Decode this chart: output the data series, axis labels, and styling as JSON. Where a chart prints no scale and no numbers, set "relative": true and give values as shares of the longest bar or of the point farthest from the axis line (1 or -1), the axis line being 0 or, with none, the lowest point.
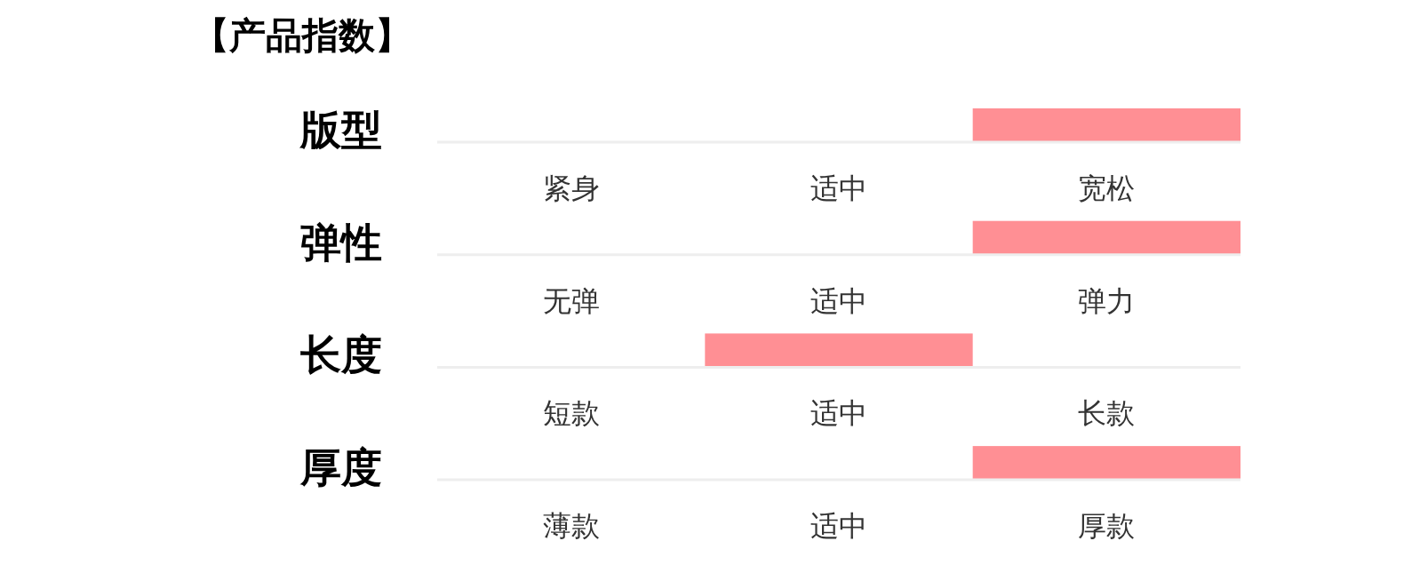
{
  "chart_data": [
    {
      "type": "bar",
      "title": "【产品指数】",
      "ylabel": "版型",
      "categories": [
        "紧身",
        "适中",
        "宽松"
      ],
      "values": [
        0,
        0,
        1
      ],
      "relative": true,
      "color": "#ff8f94"
    },
    {
      "type": "bar",
      "ylabel": "弹性",
      "categories": [
        "无弹",
        "适中",
        "弹力"
      ],
      "values": [
        0,
        0,
        1
      ],
      "relative": true,
      "color": "#ff8f94"
    },
    {
      "type": "bar",
      "ylabel": "长度",
      "categories": [
        "短款",
        "适中",
        "长款"
      ],
      "values": [
        0,
        1,
        0
      ],
      "relative": true,
      "color": "#ff8f94"
    },
    {
      "type": "bar",
      "ylabel": "厚度",
      "categories": [
        "薄款",
        "适中",
        "厚款"
      ],
      "values": [
        0,
        0,
        1
      ],
      "relative": true,
      "color": "#ff8f94"
    }
  ]
}
